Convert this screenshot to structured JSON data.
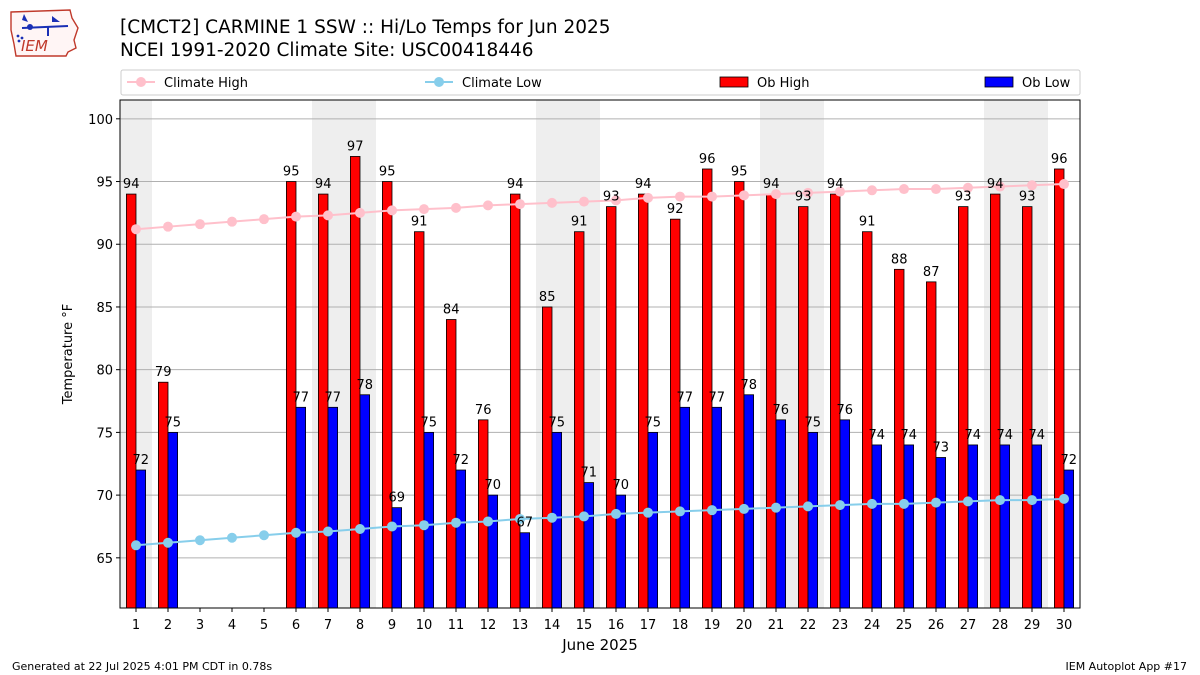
{
  "header": {
    "title_line1": "[CMCT2] CARMINE 1 SSW :: Hi/Lo Temps for Jun 2025",
    "title_line2": "NCEI 1991-2020 Climate Site: USC00418446",
    "logo_text": "IEM"
  },
  "footer": {
    "generated": "Generated at 22 Jul 2025 4:01 PM CDT in 0.78s",
    "app": "IEM Autoplot App #17"
  },
  "colors": {
    "ob_high": "#ff0000",
    "ob_low": "#0000ff",
    "climate_high": "#ffc0cb",
    "climate_low": "#87ceeb",
    "weekend_shade": "#eeeeee"
  },
  "chart_data": {
    "type": "bar",
    "title": "[CMCT2] CARMINE 1 SSW :: Hi/Lo Temps for Jun 2025",
    "xlabel": "June 2025",
    "ylabel": "Temperature °F",
    "ylim": [
      61,
      101.5
    ],
    "yticks": [
      65,
      70,
      75,
      80,
      85,
      90,
      95,
      100
    ],
    "grid": true,
    "legend_position": "top",
    "categories": [
      1,
      2,
      3,
      4,
      5,
      6,
      7,
      8,
      9,
      10,
      11,
      12,
      13,
      14,
      15,
      16,
      17,
      18,
      19,
      20,
      21,
      22,
      23,
      24,
      25,
      26,
      27,
      28,
      29,
      30
    ],
    "shaded_days": [
      1,
      7,
      8,
      14,
      15,
      21,
      22,
      28,
      29
    ],
    "series": [
      {
        "name": "Climate High",
        "type": "line",
        "values": [
          91.2,
          91.4,
          91.6,
          91.8,
          92.0,
          92.2,
          92.3,
          92.5,
          92.7,
          92.8,
          92.9,
          93.1,
          93.2,
          93.3,
          93.4,
          93.5,
          93.7,
          93.8,
          93.8,
          93.9,
          94.0,
          94.1,
          94.2,
          94.3,
          94.4,
          94.4,
          94.5,
          94.6,
          94.7,
          94.8
        ]
      },
      {
        "name": "Climate Low",
        "type": "line",
        "values": [
          66.0,
          66.2,
          66.4,
          66.6,
          66.8,
          67.0,
          67.1,
          67.3,
          67.5,
          67.6,
          67.8,
          67.9,
          68.1,
          68.2,
          68.3,
          68.5,
          68.6,
          68.7,
          68.8,
          68.9,
          69.0,
          69.1,
          69.2,
          69.3,
          69.3,
          69.4,
          69.5,
          69.6,
          69.6,
          69.7
        ]
      },
      {
        "name": "Ob High",
        "type": "bar",
        "values": [
          94,
          79,
          null,
          null,
          null,
          95,
          94,
          97,
          95,
          91,
          84,
          76,
          94,
          85,
          91,
          93,
          94,
          92,
          96,
          95,
          94,
          93,
          94,
          91,
          88,
          87,
          93,
          94,
          93,
          96
        ],
        "labels": [
          "94",
          "79",
          "",
          "",
          "",
          "95",
          "94",
          "97",
          "95",
          "91",
          "84",
          "76",
          "94",
          "85",
          "91",
          "93",
          "94",
          "92",
          "96",
          "95",
          "94",
          "93",
          "94",
          "91",
          "88",
          "87",
          "93",
          "94",
          "93",
          "96"
        ]
      },
      {
        "name": "Ob Low",
        "type": "bar",
        "values": [
          72,
          75,
          null,
          null,
          null,
          77,
          77,
          78,
          69,
          75,
          72,
          70,
          67,
          75,
          71,
          70,
          75,
          77,
          77,
          78,
          76,
          75,
          76,
          74,
          74,
          73,
          74,
          74,
          74,
          72
        ],
        "labels": [
          "72",
          "75",
          "",
          "",
          "",
          "77",
          "77",
          "78",
          "69",
          "75",
          "72",
          "70",
          "67",
          "75",
          "71",
          "70",
          "75",
          "77",
          "77",
          "78",
          "76",
          "75",
          "76",
          "74",
          "74",
          "73",
          "74",
          "74",
          "74",
          "72"
        ]
      }
    ]
  }
}
